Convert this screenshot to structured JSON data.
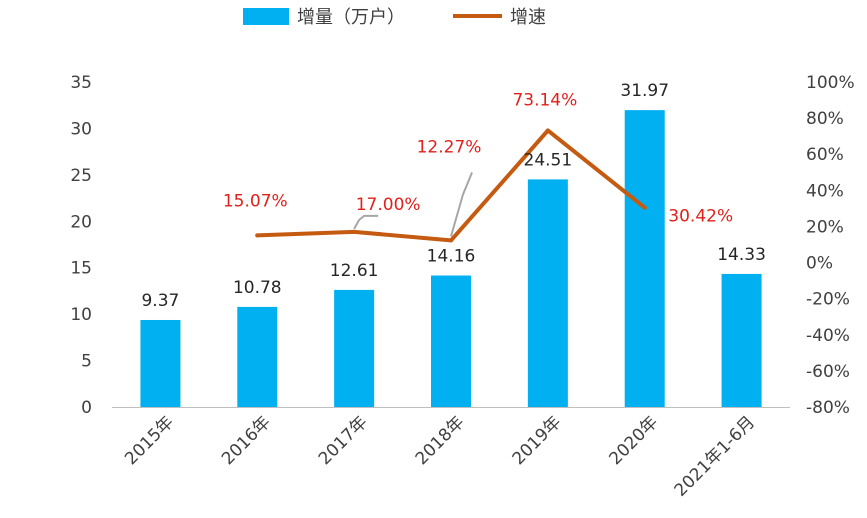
{
  "chart_data": {
    "type": "bar",
    "title": "",
    "categories": [
      "2015年",
      "2016年",
      "2017年",
      "2018年",
      "2019年",
      "2020年",
      "2021年1-6月"
    ],
    "series": [
      {
        "name": "增量（万户）",
        "type": "bar",
        "axis": "left",
        "color": "#00b0f0",
        "values": [
          9.37,
          10.78,
          12.61,
          14.16,
          24.51,
          31.97,
          14.33
        ],
        "labels": [
          "9.37",
          "10.78",
          "12.61",
          "14.16",
          "24.51",
          "31.97",
          "14.33"
        ]
      },
      {
        "name": "增速",
        "type": "line",
        "axis": "right",
        "color": "#c55a11",
        "values": [
          null,
          15.07,
          17.0,
          12.27,
          73.14,
          30.42,
          null
        ],
        "labels": [
          "",
          "15.07%",
          "17.00%",
          "12.27%",
          "73.14%",
          "30.42%",
          ""
        ],
        "label_color": "#e0201b"
      }
    ],
    "y_left": {
      "range": [
        0,
        35
      ],
      "ticks": [
        "0",
        "5",
        "10",
        "15",
        "20",
        "25",
        "30",
        "35"
      ]
    },
    "y_right": {
      "range": [
        -80,
        100
      ],
      "ticks": [
        "-80%",
        "-60%",
        "-40%",
        "-20%",
        "0%",
        "20%",
        "40%",
        "60%",
        "80%",
        "100%"
      ]
    },
    "grid": false,
    "legend": "top"
  }
}
